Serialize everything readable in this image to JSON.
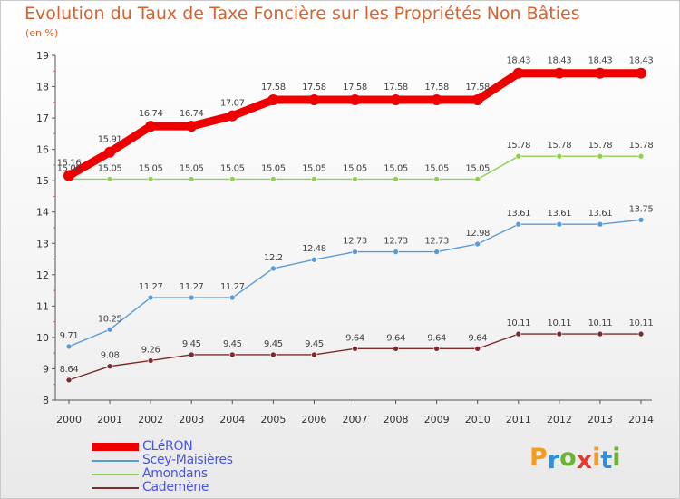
{
  "title": "Evolution du Taux de Taxe Foncière sur les Propriétés Non Bâties",
  "subtitle": "(en %)",
  "brand": {
    "text": "Proxiti",
    "colors": [
      "#f39c1d",
      "#2f8fd8",
      "#69b52d",
      "#e23a2f",
      "#f39c1d",
      "#2f8fd8",
      "#69b52d"
    ]
  },
  "chart_data": {
    "type": "line",
    "x": [
      "2000",
      "2001",
      "2002",
      "2003",
      "2004",
      "2005",
      "2006",
      "2007",
      "2008",
      "2009",
      "2010",
      "2011",
      "2012",
      "2013",
      "2014"
    ],
    "ylim": [
      8,
      19
    ],
    "yticks": [
      "8",
      "9",
      "10",
      "11",
      "12",
      "13",
      "14",
      "15",
      "16",
      "17",
      "18",
      "19"
    ],
    "grid": false,
    "legend_position": "bottom-left",
    "series": [
      {
        "name": "CLéRON",
        "color": "#ee0000",
        "width": "thick",
        "values": [
          15.16,
          15.91,
          16.74,
          16.74,
          17.07,
          17.58,
          17.58,
          17.58,
          17.58,
          17.58,
          17.58,
          18.43,
          18.43,
          18.43,
          18.43
        ],
        "labels": [
          "15.16",
          "15.91",
          "16.74",
          "16.74",
          "17.07",
          "17.58",
          "17.58",
          "17.58",
          "17.58",
          "17.58",
          "17.58",
          "18.43",
          "18.43",
          "18.43",
          "18.43"
        ]
      },
      {
        "name": "Scey-Maisières",
        "color": "#5b9bd5",
        "width": "thin",
        "values": [
          9.71,
          10.25,
          11.27,
          11.27,
          11.27,
          12.2,
          12.48,
          12.73,
          12.73,
          12.73,
          12.98,
          13.61,
          13.61,
          13.61,
          13.75
        ],
        "labels": [
          "9.71",
          "10.25",
          "11.27",
          "11.27",
          "11.27",
          "12.2",
          "12.48",
          "12.73",
          "12.73",
          "12.73",
          "12.98",
          "13.61",
          "13.61",
          "13.61",
          "13.75"
        ]
      },
      {
        "name": "Amondans",
        "color": "#8fd14f",
        "width": "thin",
        "values": [
          15.05,
          15.05,
          15.05,
          15.05,
          15.05,
          15.05,
          15.05,
          15.05,
          15.05,
          15.05,
          15.05,
          15.78,
          15.78,
          15.78,
          15.78
        ],
        "labels": [
          "15.05",
          "15.05",
          "15.05",
          "15.05",
          "15.05",
          "15.05",
          "15.05",
          "15.05",
          "15.05",
          "15.05",
          "15.05",
          "15.78",
          "15.78",
          "15.78",
          "15.78"
        ]
      },
      {
        "name": "Cademène",
        "color": "#7b2c2c",
        "width": "thin",
        "values": [
          8.64,
          9.08,
          9.26,
          9.45,
          9.45,
          9.45,
          9.45,
          9.64,
          9.64,
          9.64,
          9.64,
          10.11,
          10.11,
          10.11,
          10.11
        ],
        "labels": [
          "8.64",
          "9.08",
          "9.26",
          "9.45",
          "9.45",
          "9.45",
          "9.45",
          "9.64",
          "9.64",
          "9.64",
          "9.64",
          "10.11",
          "10.11",
          "10.11",
          "10.11"
        ]
      }
    ]
  }
}
